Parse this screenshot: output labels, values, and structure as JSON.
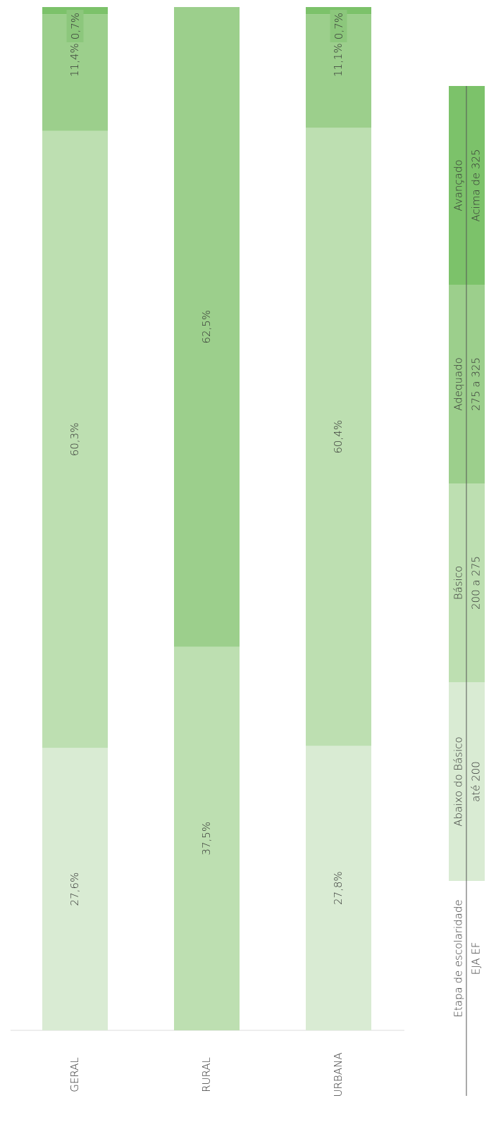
{
  "chart_data": {
    "type": "bar",
    "stacked": true,
    "categories": [
      "GERAL",
      "RURAL",
      "URBANA"
    ],
    "ylim": [
      0,
      100
    ],
    "series": [
      {
        "name": "Abaixo do Básico",
        "range": "até 200",
        "color": "#d9ebd3",
        "values": [
          27.6,
          0,
          27.8
        ],
        "value_labels": [
          "27,6%",
          null,
          "27,8%"
        ]
      },
      {
        "name": "Básico",
        "range": "200 a 275",
        "color": "#bddfb1",
        "values": [
          60.3,
          37.5,
          60.4
        ],
        "value_labels": [
          "60,3%",
          "37,5%",
          "60,4%"
        ]
      },
      {
        "name": "Adequado",
        "range": "275 a 325",
        "color": "#9ccf8c",
        "values": [
          11.4,
          62.5,
          11.1
        ],
        "value_labels": [
          "11,4%",
          "62,5%",
          "11,1%"
        ]
      },
      {
        "name": "Avançado",
        "range": "Acima de 325",
        "color": "#7cc26a",
        "values": [
          0.7,
          0,
          0.7
        ],
        "value_labels": [
          "0,7%",
          null,
          "0,7%"
        ]
      }
    ],
    "legend_title": "Etapa de escolaridade",
    "legend_subtitle": "EJA EF"
  }
}
